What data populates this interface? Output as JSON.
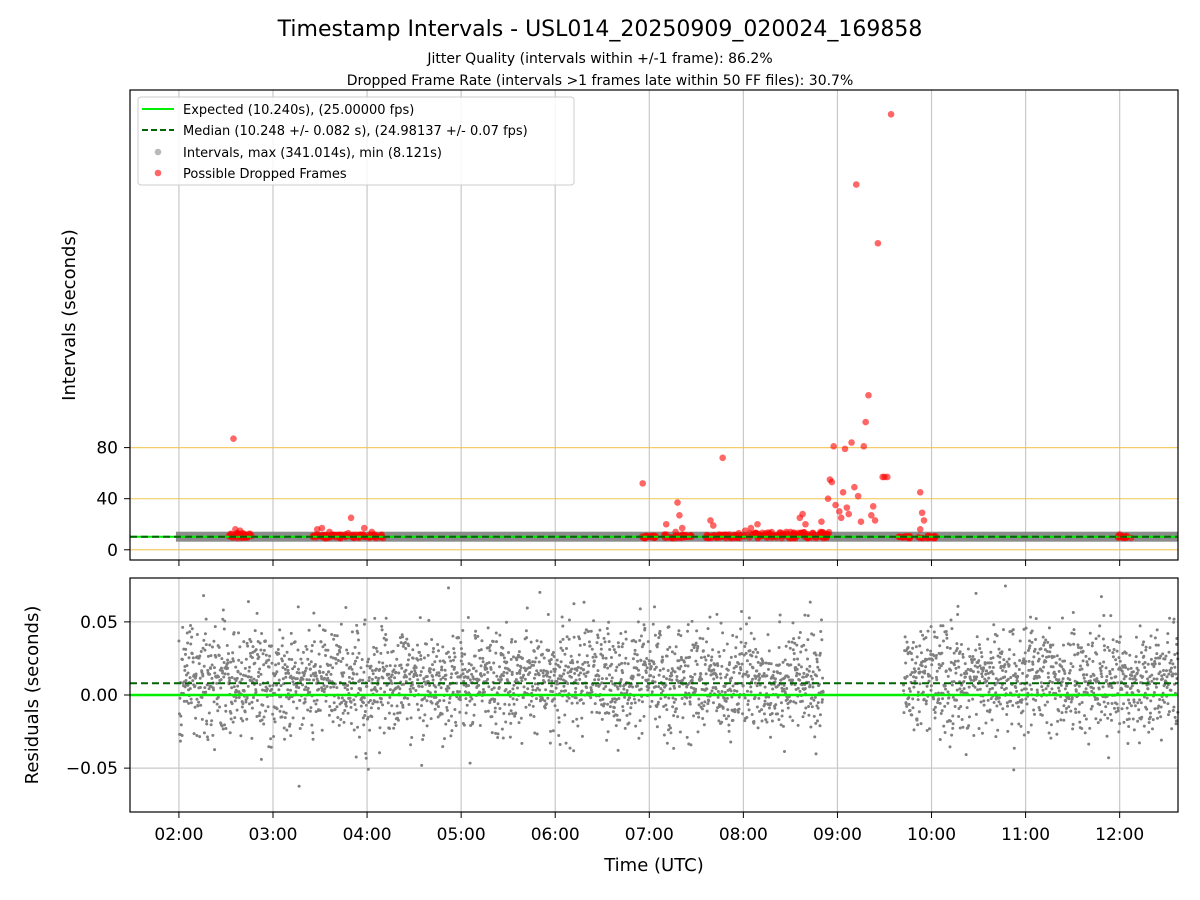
{
  "figure": {
    "title": "Timestamp Intervals - USL014_20250909_020024_169858",
    "subtitle_line1": "Jitter Quality (intervals within +/-1 frame): 86.2%",
    "subtitle_line2": "Dropped Frame Rate (intervals >1 frames late within 50 FF files): 30.7%"
  },
  "colors": {
    "expected": "#00ee00",
    "median": "#006400",
    "intervals": "#808080",
    "dropped": "#ff0000",
    "threshold_lines": "#f0c040",
    "grid": "#c8c8c8"
  },
  "chart_data": [
    {
      "type": "scatter",
      "panel": "top",
      "ylabel": "Intervals (seconds)",
      "xlabel": "",
      "y_ticks": [
        0,
        40,
        80
      ],
      "ylim": [
        -8,
        360
      ],
      "x_ticks": [
        "02:00",
        "03:00",
        "04:00",
        "05:00",
        "06:00",
        "07:00",
        "08:00",
        "09:00",
        "10:00",
        "11:00",
        "12:00"
      ],
      "xlim_hours": [
        1.48,
        12.62
      ],
      "grid": "vertical",
      "legend_position": "top-left",
      "legend": [
        {
          "label": "Expected (10.240s), (25.00000 fps)",
          "style": "solid-line",
          "color": "#00ee00"
        },
        {
          "label": "Median (10.248 +/- 0.082 s), (24.98137 +/- 0.07 fps)",
          "style": "dashed-line",
          "color": "#006400"
        },
        {
          "label": "Intervals, max (341.014s), min (8.121s)",
          "style": "marker",
          "color": "#808080"
        },
        {
          "label": "Possible Dropped Frames",
          "style": "marker",
          "color": "#ff0000"
        }
      ],
      "threshold_lines_y": [
        0,
        40,
        80
      ],
      "expected_y": 10.24,
      "median_y": 10.248,
      "intervals_band": {
        "segments_hours": [
          [
            2.0,
            12.62
          ]
        ],
        "y": 10.24
      },
      "dropped_frames": [
        {
          "x": 2.58,
          "y": 87
        },
        {
          "x": 2.6,
          "y": 16
        },
        {
          "x": 2.65,
          "y": 15
        },
        {
          "x": 2.62,
          "y": 13
        },
        {
          "x": 3.52,
          "y": 17
        },
        {
          "x": 3.47,
          "y": 16
        },
        {
          "x": 3.6,
          "y": 14
        },
        {
          "x": 3.83,
          "y": 25
        },
        {
          "x": 3.97,
          "y": 17
        },
        {
          "x": 4.05,
          "y": 14
        },
        {
          "x": 3.8,
          "y": 13
        },
        {
          "x": 6.93,
          "y": 52
        },
        {
          "x": 7.18,
          "y": 20
        },
        {
          "x": 7.3,
          "y": 37
        },
        {
          "x": 7.32,
          "y": 27
        },
        {
          "x": 7.35,
          "y": 17
        },
        {
          "x": 7.28,
          "y": 14
        },
        {
          "x": 7.65,
          "y": 23
        },
        {
          "x": 7.68,
          "y": 19
        },
        {
          "x": 7.78,
          "y": 72
        },
        {
          "x": 7.95,
          "y": 13
        },
        {
          "x": 8.02,
          "y": 15
        },
        {
          "x": 8.08,
          "y": 17
        },
        {
          "x": 8.15,
          "y": 20
        },
        {
          "x": 8.5,
          "y": 14
        },
        {
          "x": 8.6,
          "y": 25
        },
        {
          "x": 8.63,
          "y": 28
        },
        {
          "x": 8.66,
          "y": 20
        },
        {
          "x": 8.83,
          "y": 22
        },
        {
          "x": 8.9,
          "y": 40
        },
        {
          "x": 8.92,
          "y": 55
        },
        {
          "x": 8.94,
          "y": 53
        },
        {
          "x": 8.96,
          "y": 81
        },
        {
          "x": 8.98,
          "y": 35
        },
        {
          "x": 9.02,
          "y": 30
        },
        {
          "x": 9.04,
          "y": 25
        },
        {
          "x": 9.06,
          "y": 45
        },
        {
          "x": 9.08,
          "y": 79
        },
        {
          "x": 9.1,
          "y": 33
        },
        {
          "x": 9.12,
          "y": 28
        },
        {
          "x": 9.15,
          "y": 84
        },
        {
          "x": 9.18,
          "y": 49
        },
        {
          "x": 9.2,
          "y": 286
        },
        {
          "x": 9.22,
          "y": 42
        },
        {
          "x": 9.25,
          "y": 22
        },
        {
          "x": 9.28,
          "y": 81
        },
        {
          "x": 9.3,
          "y": 100
        },
        {
          "x": 9.33,
          "y": 121
        },
        {
          "x": 9.36,
          "y": 27
        },
        {
          "x": 9.38,
          "y": 34
        },
        {
          "x": 9.4,
          "y": 23
        },
        {
          "x": 9.43,
          "y": 240
        },
        {
          "x": 9.48,
          "y": 57
        },
        {
          "x": 9.5,
          "y": 57
        },
        {
          "x": 9.53,
          "y": 57
        },
        {
          "x": 9.57,
          "y": 341
        },
        {
          "x": 9.88,
          "y": 45
        },
        {
          "x": 9.9,
          "y": 29
        },
        {
          "x": 9.92,
          "y": 23
        },
        {
          "x": 9.88,
          "y": 16
        },
        {
          "x": 12.0,
          "y": 12
        }
      ],
      "dropped_clusters": [
        {
          "range_hours": [
            2.5,
            2.78
          ],
          "y_range": [
            9,
            13
          ]
        },
        {
          "range_hours": [
            3.42,
            3.86
          ],
          "y_range": [
            9,
            12
          ]
        },
        {
          "range_hours": [
            3.82,
            4.18
          ],
          "y_range": [
            9,
            12
          ]
        },
        {
          "range_hours": [
            6.92,
            7.1
          ],
          "y_range": [
            9,
            11
          ]
        },
        {
          "range_hours": [
            7.15,
            7.45
          ],
          "y_range": [
            9,
            12
          ]
        },
        {
          "range_hours": [
            7.6,
            8.0
          ],
          "y_range": [
            9,
            12
          ]
        },
        {
          "range_hours": [
            8.0,
            8.92
          ],
          "y_range": [
            9,
            14
          ]
        },
        {
          "range_hours": [
            9.64,
            9.78
          ],
          "y_range": [
            9,
            11
          ]
        },
        {
          "range_hours": [
            9.86,
            10.05
          ],
          "y_range": [
            9,
            11
          ]
        },
        {
          "range_hours": [
            11.98,
            12.14
          ],
          "y_range": [
            9,
            11
          ]
        }
      ]
    },
    {
      "type": "scatter",
      "panel": "bottom",
      "xlabel": "Time (UTC)",
      "ylabel": "Residuals (seconds)",
      "y_ticks": [
        0.05,
        0.0,
        -0.05
      ],
      "y_tick_labels": [
        "0.05",
        "0.00",
        "−0.05"
      ],
      "ylim": [
        -0.08,
        0.08
      ],
      "x_ticks": [
        "02:00",
        "03:00",
        "04:00",
        "05:00",
        "06:00",
        "07:00",
        "08:00",
        "09:00",
        "10:00",
        "11:00",
        "12:00"
      ],
      "xlim_hours": [
        1.48,
        12.62
      ],
      "grid": "both",
      "expected_y": 0.0,
      "median_y": 0.008,
      "residual_segments_hours": [
        [
          2.0,
          8.85
        ],
        [
          9.7,
          12.62
        ]
      ],
      "residual_spread": {
        "center": 0.01,
        "typical_min": -0.03,
        "typical_max": 0.05
      }
    }
  ]
}
